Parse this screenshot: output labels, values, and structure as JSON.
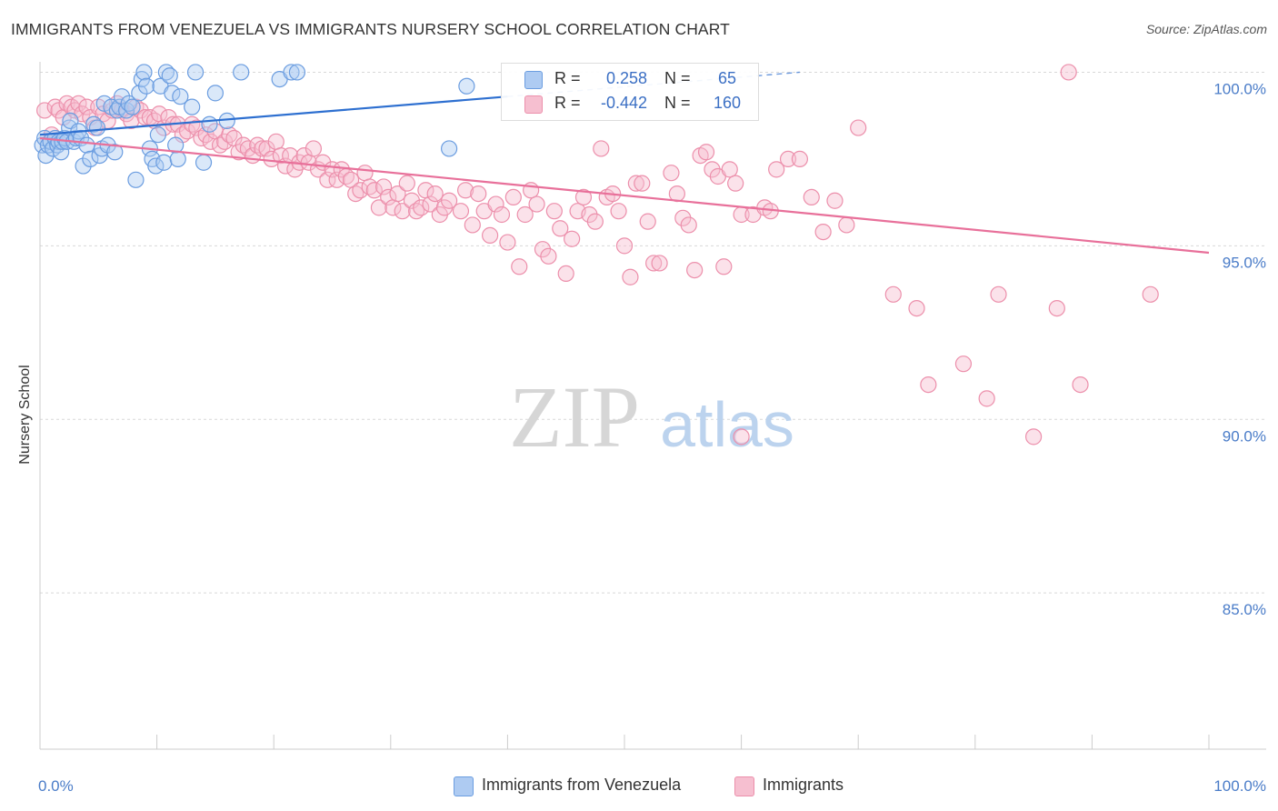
{
  "header": {
    "title": "IMMIGRANTS FROM VENEZUELA VS IMMIGRANTS NURSERY SCHOOL CORRELATION CHART",
    "source": "Source: ZipAtlas.com"
  },
  "watermark": {
    "zip": "ZIP",
    "atlas": "atlas"
  },
  "colors": {
    "blue_fill": "#aecbf2",
    "blue_stroke": "#6b9de0",
    "blue_line": "#2d6fd0",
    "pink_fill": "#f6bfd0",
    "pink_stroke": "#ec8fab",
    "pink_line": "#e8709a",
    "tick_text": "#4a7cc8",
    "grid": "#d8d8d8"
  },
  "legend_top": {
    "rows": [
      {
        "r_label": "R =",
        "r_value": "0.258",
        "n_label": "N =",
        "n_value": "65"
      },
      {
        "r_label": "R =",
        "r_value": "-0.442",
        "n_label": "N =",
        "n_value": "160"
      }
    ]
  },
  "legend_bottom": {
    "items": [
      {
        "label": "Immigrants from Venezuela"
      },
      {
        "label": "Immigrants"
      }
    ]
  },
  "chart_data": {
    "type": "scatter",
    "title": "IMMIGRANTS FROM VENEZUELA VS IMMIGRANTS NURSERY SCHOOL CORRELATION CHART",
    "xlabel": "",
    "ylabel": "Nursery School",
    "xlim": [
      0,
      100
    ],
    "ylim": [
      80.5,
      100.3
    ],
    "x_ticks": [
      {
        "value": 0,
        "label": "0.0%"
      },
      {
        "value": 100,
        "label": "100.0%"
      }
    ],
    "y_ticks": [
      {
        "value": 100,
        "label": "100.0%"
      },
      {
        "value": 95,
        "label": "95.0%"
      },
      {
        "value": 90,
        "label": "90.0%"
      },
      {
        "value": 85,
        "label": "85.0%"
      }
    ],
    "grid": "horizontal dashed",
    "legend": "bottom-center",
    "series": [
      {
        "name": "Immigrants from Venezuela",
        "color": "#aecbf2",
        "trend": {
          "x": [
            0,
            40,
            65
          ],
          "y": [
            98.2,
            99.3,
            100.0
          ],
          "solid_until": 40
        },
        "points": [
          [
            0.2,
            97.9
          ],
          [
            0.4,
            98.1
          ],
          [
            0.5,
            97.6
          ],
          [
            0.7,
            97.9
          ],
          [
            0.9,
            98.0
          ],
          [
            1.1,
            97.8
          ],
          [
            1.3,
            98.1
          ],
          [
            1.5,
            97.9
          ],
          [
            1.6,
            98.0
          ],
          [
            1.8,
            97.7
          ],
          [
            1.9,
            98.0
          ],
          [
            2.1,
            98.1
          ],
          [
            2.3,
            98.0
          ],
          [
            2.5,
            98.4
          ],
          [
            2.6,
            98.6
          ],
          [
            2.9,
            98.0
          ],
          [
            3.1,
            98.1
          ],
          [
            3.3,
            98.3
          ],
          [
            3.5,
            98.1
          ],
          [
            3.7,
            97.3
          ],
          [
            4.0,
            97.9
          ],
          [
            4.3,
            97.5
          ],
          [
            4.6,
            98.5
          ],
          [
            4.9,
            98.4
          ],
          [
            5.1,
            97.6
          ],
          [
            5.3,
            97.8
          ],
          [
            5.5,
            99.1
          ],
          [
            5.8,
            97.9
          ],
          [
            6.1,
            99.0
          ],
          [
            6.4,
            97.7
          ],
          [
            6.6,
            98.9
          ],
          [
            6.8,
            99.0
          ],
          [
            7.0,
            99.3
          ],
          [
            7.4,
            98.9
          ],
          [
            7.6,
            99.1
          ],
          [
            7.9,
            99.0
          ],
          [
            8.2,
            96.9
          ],
          [
            8.5,
            99.4
          ],
          [
            8.7,
            99.8
          ],
          [
            8.9,
            100.0
          ],
          [
            9.1,
            99.6
          ],
          [
            9.4,
            97.8
          ],
          [
            9.6,
            97.5
          ],
          [
            9.9,
            97.3
          ],
          [
            10.1,
            98.2
          ],
          [
            10.3,
            99.6
          ],
          [
            10.6,
            97.4
          ],
          [
            10.8,
            100.0
          ],
          [
            11.1,
            99.9
          ],
          [
            11.3,
            99.4
          ],
          [
            11.6,
            97.9
          ],
          [
            11.8,
            97.5
          ],
          [
            12.0,
            99.3
          ],
          [
            13.0,
            99.0
          ],
          [
            13.3,
            100.0
          ],
          [
            14.0,
            97.4
          ],
          [
            14.5,
            98.5
          ],
          [
            15.0,
            99.4
          ],
          [
            16.0,
            98.6
          ],
          [
            17.2,
            100.0
          ],
          [
            20.5,
            99.8
          ],
          [
            21.5,
            100.0
          ],
          [
            22.0,
            100.0
          ],
          [
            35.0,
            97.8
          ],
          [
            36.5,
            99.6
          ]
        ]
      },
      {
        "name": "Immigrants",
        "color": "#f6bfd0",
        "trend": {
          "x": [
            0,
            100
          ],
          "y": [
            98.1,
            94.8
          ]
        },
        "points": [
          [
            0.4,
            98.9
          ],
          [
            1.0,
            98.2
          ],
          [
            1.3,
            99.0
          ],
          [
            1.6,
            98.9
          ],
          [
            2.0,
            98.7
          ],
          [
            2.3,
            99.1
          ],
          [
            2.7,
            99.0
          ],
          [
            3.0,
            98.9
          ],
          [
            3.3,
            99.1
          ],
          [
            3.6,
            98.8
          ],
          [
            4.0,
            99.0
          ],
          [
            4.3,
            98.7
          ],
          [
            4.7,
            98.4
          ],
          [
            5.0,
            99.0
          ],
          [
            5.4,
            98.8
          ],
          [
            5.8,
            98.6
          ],
          [
            6.2,
            98.9
          ],
          [
            6.6,
            99.1
          ],
          [
            7.0,
            98.9
          ],
          [
            7.4,
            98.8
          ],
          [
            7.8,
            98.6
          ],
          [
            8.2,
            99.0
          ],
          [
            8.6,
            98.9
          ],
          [
            9.0,
            98.7
          ],
          [
            9.4,
            98.7
          ],
          [
            9.8,
            98.6
          ],
          [
            10.2,
            98.8
          ],
          [
            10.6,
            98.4
          ],
          [
            11.0,
            98.7
          ],
          [
            11.4,
            98.5
          ],
          [
            11.8,
            98.5
          ],
          [
            12.2,
            98.2
          ],
          [
            12.6,
            98.3
          ],
          [
            13.0,
            98.5
          ],
          [
            13.4,
            98.4
          ],
          [
            13.8,
            98.1
          ],
          [
            14.2,
            98.2
          ],
          [
            14.6,
            98.0
          ],
          [
            15.0,
            98.3
          ],
          [
            15.4,
            97.9
          ],
          [
            15.8,
            98.0
          ],
          [
            16.2,
            98.2
          ],
          [
            16.6,
            98.1
          ],
          [
            17.0,
            97.7
          ],
          [
            17.4,
            97.9
          ],
          [
            17.8,
            97.8
          ],
          [
            18.2,
            97.6
          ],
          [
            18.6,
            97.9
          ],
          [
            19.0,
            97.8
          ],
          [
            19.4,
            97.8
          ],
          [
            19.8,
            97.5
          ],
          [
            20.2,
            98.0
          ],
          [
            20.6,
            97.6
          ],
          [
            21.0,
            97.3
          ],
          [
            21.4,
            97.6
          ],
          [
            21.8,
            97.2
          ],
          [
            22.2,
            97.4
          ],
          [
            22.6,
            97.6
          ],
          [
            23.0,
            97.4
          ],
          [
            23.4,
            97.8
          ],
          [
            23.8,
            97.2
          ],
          [
            24.2,
            97.4
          ],
          [
            24.6,
            96.9
          ],
          [
            25.0,
            97.2
          ],
          [
            25.4,
            96.9
          ],
          [
            25.8,
            97.2
          ],
          [
            26.2,
            97.0
          ],
          [
            26.6,
            96.9
          ],
          [
            27.0,
            96.5
          ],
          [
            27.4,
            96.6
          ],
          [
            27.8,
            97.1
          ],
          [
            28.2,
            96.7
          ],
          [
            28.6,
            96.6
          ],
          [
            29.0,
            96.1
          ],
          [
            29.4,
            96.7
          ],
          [
            29.8,
            96.4
          ],
          [
            30.2,
            96.1
          ],
          [
            30.6,
            96.5
          ],
          [
            31.0,
            96.0
          ],
          [
            31.4,
            96.8
          ],
          [
            31.8,
            96.3
          ],
          [
            32.2,
            96.0
          ],
          [
            32.6,
            96.1
          ],
          [
            33.0,
            96.6
          ],
          [
            33.4,
            96.2
          ],
          [
            33.8,
            96.5
          ],
          [
            34.2,
            95.9
          ],
          [
            34.6,
            96.1
          ],
          [
            35.0,
            96.3
          ],
          [
            36.0,
            96.0
          ],
          [
            36.4,
            96.6
          ],
          [
            37.0,
            95.6
          ],
          [
            37.5,
            96.5
          ],
          [
            38.0,
            96.0
          ],
          [
            38.5,
            95.3
          ],
          [
            39.0,
            96.2
          ],
          [
            39.5,
            95.9
          ],
          [
            40.0,
            95.1
          ],
          [
            40.5,
            96.4
          ],
          [
            41.0,
            94.4
          ],
          [
            41.5,
            95.9
          ],
          [
            42.0,
            96.6
          ],
          [
            42.5,
            96.2
          ],
          [
            43.0,
            94.9
          ],
          [
            43.5,
            94.7
          ],
          [
            44.0,
            96.0
          ],
          [
            44.5,
            95.5
          ],
          [
            45.0,
            94.2
          ],
          [
            45.5,
            95.2
          ],
          [
            46.0,
            96.0
          ],
          [
            46.5,
            96.4
          ],
          [
            47.0,
            95.9
          ],
          [
            47.5,
            95.7
          ],
          [
            48.0,
            97.8
          ],
          [
            48.5,
            96.4
          ],
          [
            49.0,
            96.5
          ],
          [
            49.5,
            96.0
          ],
          [
            50.0,
            95.0
          ],
          [
            50.5,
            94.1
          ],
          [
            51.0,
            96.8
          ],
          [
            51.5,
            96.8
          ],
          [
            52.0,
            95.7
          ],
          [
            52.5,
            94.5
          ],
          [
            53.0,
            94.5
          ],
          [
            54.0,
            97.1
          ],
          [
            54.5,
            96.5
          ],
          [
            55.0,
            95.8
          ],
          [
            55.5,
            95.6
          ],
          [
            56.0,
            94.3
          ],
          [
            56.5,
            97.6
          ],
          [
            57.0,
            97.7
          ],
          [
            57.5,
            97.2
          ],
          [
            58.0,
            97.0
          ],
          [
            58.5,
            94.4
          ],
          [
            59.0,
            97.2
          ],
          [
            59.5,
            96.8
          ],
          [
            60.0,
            95.9
          ],
          [
            61.0,
            95.9
          ],
          [
            62.0,
            96.1
          ],
          [
            62.5,
            96.0
          ],
          [
            63.0,
            97.2
          ],
          [
            64.0,
            97.5
          ],
          [
            65.0,
            97.5
          ],
          [
            66.0,
            96.4
          ],
          [
            67.0,
            95.4
          ],
          [
            68.0,
            96.3
          ],
          [
            69.0,
            95.6
          ],
          [
            70.0,
            98.4
          ],
          [
            73.0,
            93.6
          ],
          [
            75.0,
            93.2
          ],
          [
            76.0,
            91.0
          ],
          [
            79.0,
            91.6
          ],
          [
            81.0,
            90.6
          ],
          [
            82.0,
            93.6
          ],
          [
            85.0,
            89.5
          ],
          [
            87.0,
            93.2
          ],
          [
            88.0,
            100.0
          ],
          [
            89.0,
            91.0
          ],
          [
            95.0,
            93.6
          ],
          [
            60.0,
            89.5
          ]
        ]
      }
    ]
  }
}
